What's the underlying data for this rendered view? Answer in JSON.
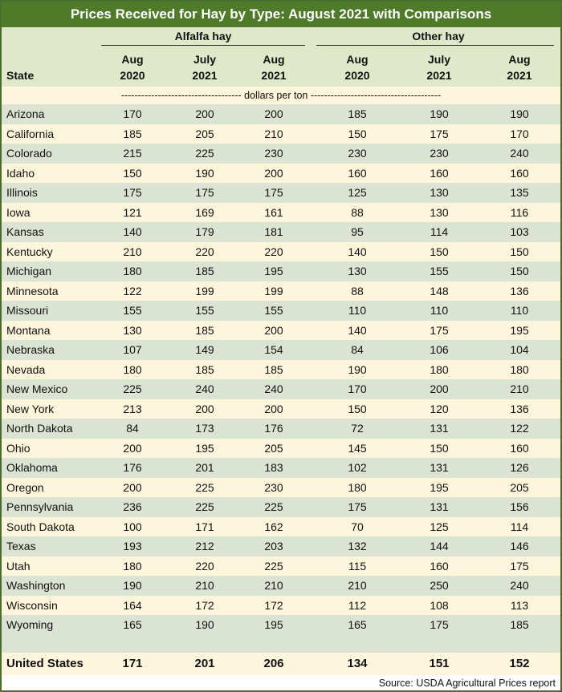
{
  "title": "Prices Received for Hay by Type: August 2021 with Comparisons",
  "groups": {
    "alfalfa": "Alfalfa hay",
    "other": "Other hay"
  },
  "columns": [
    {
      "line1": "Aug",
      "line2": "2020"
    },
    {
      "line1": "July",
      "line2": "2021"
    },
    {
      "line1": "Aug",
      "line2": "2021"
    },
    {
      "line1": "Aug",
      "line2": "2020"
    },
    {
      "line1": "July",
      "line2": "2021"
    },
    {
      "line1": "Aug",
      "line2": "2021"
    }
  ],
  "state_header": "State",
  "unit_label": "------------------------------------ dollars per ton ---------------------------------------",
  "rows": [
    {
      "state": "Arizona",
      "v": [
        "170",
        "200",
        "200",
        "185",
        "190",
        "190"
      ]
    },
    {
      "state": "California",
      "v": [
        "185",
        "205",
        "210",
        "150",
        "175",
        "170"
      ]
    },
    {
      "state": "Colorado",
      "v": [
        "215",
        "225",
        "230",
        "230",
        "230",
        "240"
      ]
    },
    {
      "state": "Idaho",
      "v": [
        "150",
        "190",
        "200",
        "160",
        "160",
        "160"
      ]
    },
    {
      "state": "Illinois",
      "v": [
        "175",
        "175",
        "175",
        "125",
        "130",
        "135"
      ]
    },
    {
      "state": "Iowa",
      "v": [
        "121",
        "169",
        "161",
        "88",
        "130",
        "116"
      ]
    },
    {
      "state": "Kansas",
      "v": [
        "140",
        "179",
        "181",
        "95",
        "114",
        "103"
      ]
    },
    {
      "state": "Kentucky",
      "v": [
        "210",
        "220",
        "220",
        "140",
        "150",
        "150"
      ]
    },
    {
      "state": "Michigan",
      "v": [
        "180",
        "185",
        "195",
        "130",
        "155",
        "150"
      ]
    },
    {
      "state": "Minnesota",
      "v": [
        "122",
        "199",
        "199",
        "88",
        "148",
        "136"
      ]
    },
    {
      "state": "Missouri",
      "v": [
        "155",
        "155",
        "155",
        "110",
        "110",
        "110"
      ]
    },
    {
      "state": "Montana",
      "v": [
        "130",
        "185",
        "200",
        "140",
        "175",
        "195"
      ]
    },
    {
      "state": "Nebraska",
      "v": [
        "107",
        "149",
        "154",
        "84",
        "106",
        "104"
      ]
    },
    {
      "state": "Nevada",
      "v": [
        "180",
        "185",
        "185",
        "190",
        "180",
        "180"
      ]
    },
    {
      "state": "New Mexico",
      "v": [
        "225",
        "240",
        "240",
        "170",
        "200",
        "210"
      ]
    },
    {
      "state": "New York",
      "v": [
        "213",
        "200",
        "200",
        "150",
        "120",
        "136"
      ]
    },
    {
      "state": "North Dakota",
      "v": [
        "84",
        "173",
        "176",
        "72",
        "131",
        "122"
      ]
    },
    {
      "state": "Ohio",
      "v": [
        "200",
        "195",
        "205",
        "145",
        "150",
        "160"
      ]
    },
    {
      "state": "Oklahoma",
      "v": [
        "176",
        "201",
        "183",
        "102",
        "131",
        "126"
      ]
    },
    {
      "state": "Oregon",
      "v": [
        "200",
        "225",
        "230",
        "180",
        "195",
        "205"
      ]
    },
    {
      "state": "Pennsylvania",
      "v": [
        "236",
        "225",
        "225",
        "175",
        "131",
        "156"
      ]
    },
    {
      "state": "South Dakota",
      "v": [
        "100",
        "171",
        "162",
        "70",
        "125",
        "114"
      ]
    },
    {
      "state": "Texas",
      "v": [
        "193",
        "212",
        "203",
        "132",
        "144",
        "146"
      ]
    },
    {
      "state": "Utah",
      "v": [
        "180",
        "220",
        "225",
        "115",
        "160",
        "175"
      ]
    },
    {
      "state": "Washington",
      "v": [
        "190",
        "210",
        "210",
        "210",
        "250",
        "240"
      ]
    },
    {
      "state": "Wisconsin",
      "v": [
        "164",
        "172",
        "172",
        "112",
        "108",
        "113"
      ]
    },
    {
      "state": "Wyoming",
      "v": [
        "165",
        "190",
        "195",
        "165",
        "175",
        "185"
      ]
    }
  ],
  "total": {
    "state": "United States",
    "v": [
      "171",
      "201",
      "206",
      "134",
      "151",
      "152"
    ]
  },
  "source": "Source: USDA Agricultural Prices report"
}
